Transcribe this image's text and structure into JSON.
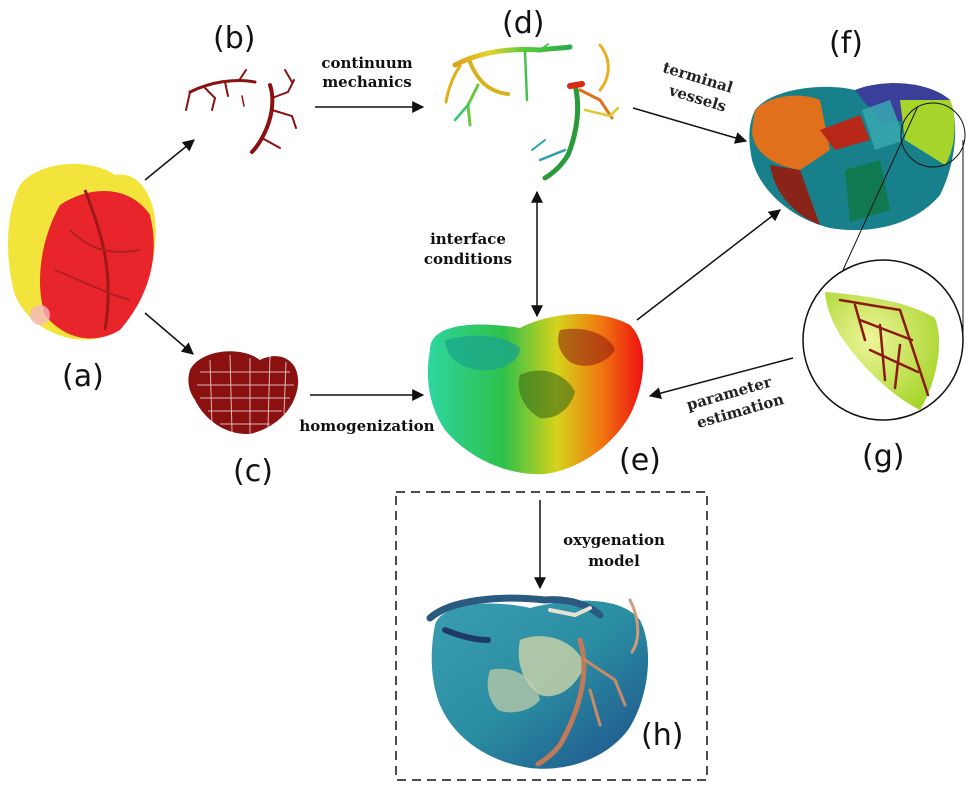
{
  "panels": {
    "a": "(a)",
    "b": "(b)",
    "c": "(c)",
    "d": "(d)",
    "e": "(e)",
    "f": "(f)",
    "g": "(g)",
    "h": "(h)"
  },
  "edges": {
    "continuum_mechanics": [
      "continuum",
      "mechanics"
    ],
    "terminal_vessels": [
      "terminal",
      "vessels"
    ],
    "interface_conditions": [
      "interface",
      "conditions"
    ],
    "homogenization": "homogenization",
    "parameter_estimation": [
      "parameter",
      "estimation"
    ],
    "oxygenation_model": [
      "oxygenation",
      "model"
    ]
  },
  "colors": {
    "vessel_dark_red": "#8b1010",
    "heart_yellow": "#f2e43a",
    "heart_red": "#e8252a",
    "perfusion_green": "#2ecc71",
    "perfusion_red": "#ff1a00",
    "oxygen_teal": "#2a8ba0",
    "segment_orange": "#e0701c",
    "segment_teal": "#17808a",
    "segment_blue": "#3a3f9a",
    "segment_lime": "#a6d42a"
  }
}
